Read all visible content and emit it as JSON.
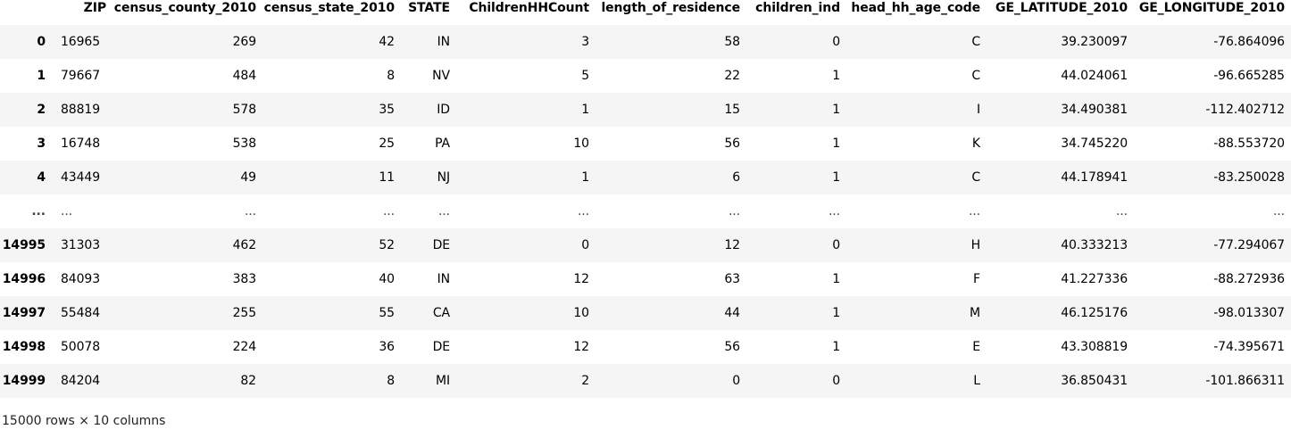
{
  "columns": [
    "ZIP",
    "census_county_2010",
    "census_state_2010",
    "STATE",
    "ChildrenHHCount",
    "length_of_residence",
    "children_ind",
    "head_hh_age_code",
    "GE_LATITUDE_2010",
    "GE_LONGITUDE_2010"
  ],
  "rows": [
    {
      "index": "0",
      "cells": [
        "16965",
        "269",
        "42",
        "IN",
        "3",
        "58",
        "0",
        "C",
        "39.230097",
        "-76.864096"
      ]
    },
    {
      "index": "1",
      "cells": [
        "79667",
        "484",
        "8",
        "NV",
        "5",
        "22",
        "1",
        "C",
        "44.024061",
        "-96.665285"
      ]
    },
    {
      "index": "2",
      "cells": [
        "88819",
        "578",
        "35",
        "ID",
        "1",
        "15",
        "1",
        "I",
        "34.490381",
        "-112.402712"
      ]
    },
    {
      "index": "3",
      "cells": [
        "16748",
        "538",
        "25",
        "PA",
        "10",
        "56",
        "1",
        "K",
        "34.745220",
        "-88.553720"
      ]
    },
    {
      "index": "4",
      "cells": [
        "43449",
        "49",
        "11",
        "NJ",
        "1",
        "6",
        "1",
        "C",
        "44.178941",
        "-83.250028"
      ]
    },
    {
      "index": "...",
      "cells": [
        "...",
        "...",
        "...",
        "...",
        "...",
        "...",
        "...",
        "...",
        "...",
        "..."
      ]
    },
    {
      "index": "14995",
      "cells": [
        "31303",
        "462",
        "52",
        "DE",
        "0",
        "12",
        "0",
        "H",
        "40.333213",
        "-77.294067"
      ]
    },
    {
      "index": "14996",
      "cells": [
        "84093",
        "383",
        "40",
        "IN",
        "12",
        "63",
        "1",
        "F",
        "41.227336",
        "-88.272936"
      ]
    },
    {
      "index": "14997",
      "cells": [
        "55484",
        "255",
        "55",
        "CA",
        "10",
        "44",
        "1",
        "M",
        "46.125176",
        "-98.013307"
      ]
    },
    {
      "index": "14998",
      "cells": [
        "50078",
        "224",
        "36",
        "DE",
        "12",
        "56",
        "1",
        "E",
        "43.308819",
        "-74.395671"
      ]
    },
    {
      "index": "14999",
      "cells": [
        "84204",
        "82",
        "8",
        "MI",
        "2",
        "0",
        "0",
        "L",
        "36.850431",
        "-101.866311"
      ]
    }
  ],
  "shape_text": "15000 rows × 10 columns"
}
